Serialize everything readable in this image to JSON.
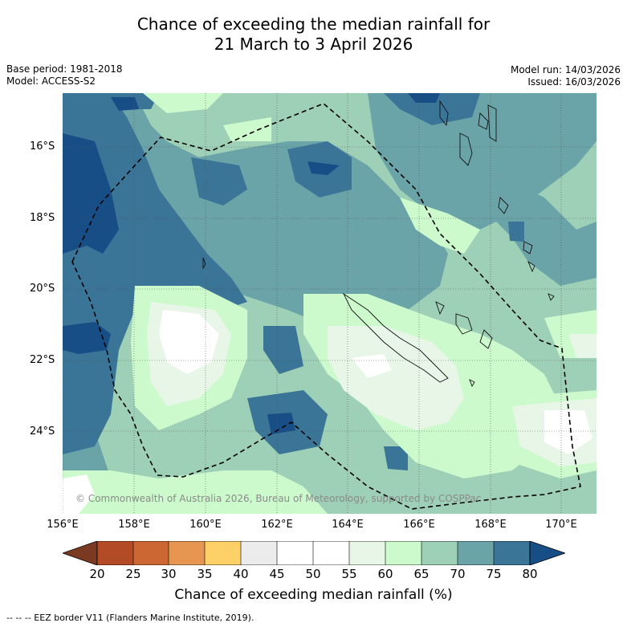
{
  "title": {
    "line1": "Chance of exceeding the median rainfall for",
    "line2": "21 March to 3 April 2026"
  },
  "meta": {
    "base_period": "Base period: 1981-2018",
    "model": "Model: ACCESS-S2",
    "model_run": "Model run: 14/03/2026",
    "issued": "Issued: 16/03/2026"
  },
  "map": {
    "lat_labels": [
      "16°S",
      "18°S",
      "20°S",
      "22°S",
      "24°S"
    ],
    "lon_labels": [
      "156°E",
      "158°E",
      "160°E",
      "162°E",
      "164°E",
      "166°E",
      "168°E",
      "170°E"
    ],
    "copyright": "© Commonwealth of Australia 2026, Bureau of Meteorology, supported by COSPPac",
    "colors": {
      "c20_25": "#b34b26",
      "c25_30": "#cc6633",
      "c30_35": "#e69650",
      "c35_40": "#fdd068",
      "c40_45": "#ececec",
      "c45_50": "#ffffff",
      "c50_55": "#ffffff",
      "c55_60": "#e8f6e8",
      "c60_65": "#ccfacc",
      "c65_70": "#9ecfb7",
      "c70_75": "#6aa4a8",
      "c75_80": "#3a7598",
      "above": "#174e86",
      "below": "#7a3a22"
    }
  },
  "colorbar": {
    "ticks": [
      "20",
      "25",
      "30",
      "35",
      "40",
      "45",
      "50",
      "55",
      "60",
      "65",
      "70",
      "75",
      "80"
    ],
    "label": "Chance of exceeding median rainfall (%)"
  },
  "footer": "--  --  -- EEZ border V11 (Flanders Marine Institute, 2019)."
}
